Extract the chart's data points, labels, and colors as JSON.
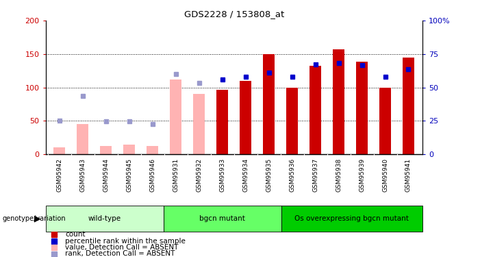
{
  "title": "GDS2228 / 153808_at",
  "samples": [
    "GSM95942",
    "GSM95943",
    "GSM95944",
    "GSM95945",
    "GSM95946",
    "GSM95931",
    "GSM95932",
    "GSM95933",
    "GSM95934",
    "GSM95935",
    "GSM95936",
    "GSM95937",
    "GSM95938",
    "GSM95939",
    "GSM95940",
    "GSM95941"
  ],
  "count_values": [
    10,
    0,
    12,
    14,
    12,
    0,
    0,
    96,
    110,
    150,
    100,
    132,
    157,
    138,
    100,
    145
  ],
  "rank_values": [
    0,
    0,
    0,
    0,
    0,
    0,
    0,
    112,
    116,
    122,
    116,
    134,
    136,
    133,
    116,
    127
  ],
  "count_absent": [
    10,
    45,
    12,
    14,
    12,
    112,
    90,
    0,
    0,
    0,
    0,
    0,
    0,
    0,
    0,
    0
  ],
  "rank_absent": [
    50,
    87,
    49,
    49,
    45,
    120,
    107,
    0,
    0,
    0,
    0,
    0,
    0,
    0,
    0,
    0
  ],
  "is_absent": [
    true,
    true,
    true,
    true,
    true,
    true,
    true,
    false,
    false,
    false,
    false,
    false,
    false,
    false,
    false,
    false
  ],
  "groups": [
    {
      "label": "wild-type",
      "start": 0,
      "end": 5,
      "color": "#ccffcc"
    },
    {
      "label": "bgcn mutant",
      "start": 5,
      "end": 10,
      "color": "#66ff66"
    },
    {
      "label": "Os overexpressing bgcn mutant",
      "start": 10,
      "end": 16,
      "color": "#00cc00"
    }
  ],
  "ylim": [
    0,
    200
  ],
  "y2lim": [
    0,
    100
  ],
  "yticks_left": [
    0,
    50,
    100,
    150,
    200
  ],
  "yticks_right": [
    0,
    25,
    50,
    75,
    100
  ],
  "bar_color_present": "#cc0000",
  "bar_color_absent": "#ffb3b3",
  "rank_color_present": "#0000cc",
  "rank_color_absent": "#9999cc",
  "bg_color": "#ffffff",
  "plot_bg": "#ffffff",
  "tick_bg": "#d8d8d8",
  "left_axis_color": "#cc0000",
  "right_axis_color": "#0000bb"
}
